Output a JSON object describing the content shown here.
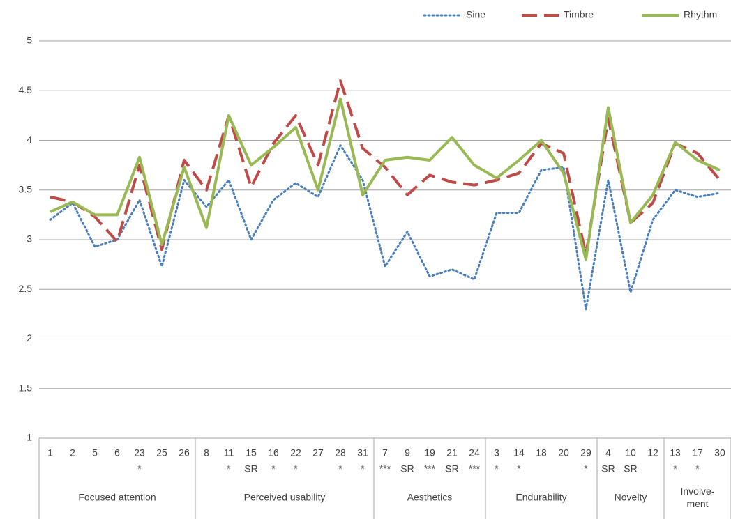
{
  "chart_data": {
    "type": "line",
    "groups": [
      {
        "label": "Focused attention",
        "categories": [
          {
            "label": "1",
            "note": null
          },
          {
            "label": "2",
            "note": null
          },
          {
            "label": "5",
            "note": null
          },
          {
            "label": "6",
            "note": null
          },
          {
            "label": "23",
            "note": "*"
          },
          {
            "label": "25",
            "note": null
          },
          {
            "label": "26",
            "note": null
          }
        ]
      },
      {
        "label": "Perceived usability",
        "categories": [
          {
            "label": "8",
            "note": null
          },
          {
            "label": "11",
            "note": "*"
          },
          {
            "label": "15",
            "note": "SR"
          },
          {
            "label": "16",
            "note": "*"
          },
          {
            "label": "22",
            "note": "*"
          },
          {
            "label": "27",
            "note": null
          },
          {
            "label": "28",
            "note": "*"
          },
          {
            "label": "31",
            "note": "*"
          }
        ]
      },
      {
        "label": "Aesthetics",
        "categories": [
          {
            "label": "7",
            "note": "***"
          },
          {
            "label": "9",
            "note": "SR"
          },
          {
            "label": "19",
            "note": "***"
          },
          {
            "label": "21",
            "note": "SR"
          },
          {
            "label": "24",
            "note": "***"
          }
        ]
      },
      {
        "label": "Endurability",
        "categories": [
          {
            "label": "3",
            "note": "*"
          },
          {
            "label": "14",
            "note": "*"
          },
          {
            "label": "18",
            "note": null
          },
          {
            "label": "20",
            "note": null
          },
          {
            "label": "29",
            "note": "*"
          }
        ]
      },
      {
        "label": "Novelty",
        "categories": [
          {
            "label": "4",
            "note": "SR"
          },
          {
            "label": "10",
            "note": "SR"
          },
          {
            "label": "12",
            "note": null
          }
        ]
      },
      {
        "label": "Involve-\nment",
        "categories": [
          {
            "label": "13",
            "note": "*"
          },
          {
            "label": "17",
            "note": "*"
          },
          {
            "label": "30",
            "note": null
          }
        ]
      }
    ],
    "series": [
      {
        "name": "Sine",
        "color": "#4a7ebb",
        "style": "dotted",
        "values": [
          3.2,
          3.37,
          2.93,
          3.0,
          3.4,
          2.73,
          3.6,
          3.33,
          3.6,
          3.0,
          3.4,
          3.57,
          3.43,
          3.95,
          3.6,
          2.73,
          3.08,
          2.63,
          2.7,
          2.6,
          3.27,
          3.27,
          3.7,
          3.73,
          2.3,
          3.6,
          2.47,
          3.2,
          3.5,
          3.43,
          3.47
        ]
      },
      {
        "name": "Timbre",
        "color": "#be4b48",
        "style": "dashed",
        "values": [
          3.43,
          3.38,
          3.23,
          2.98,
          3.75,
          2.9,
          3.8,
          3.5,
          4.25,
          3.53,
          3.97,
          4.25,
          3.75,
          4.6,
          3.92,
          3.73,
          3.45,
          3.65,
          3.58,
          3.55,
          3.6,
          3.67,
          3.97,
          3.87,
          2.85,
          4.22,
          3.17,
          3.37,
          3.97,
          3.87,
          3.6
        ]
      },
      {
        "name": "Rhythm",
        "color": "#98b954",
        "style": "solid",
        "values": [
          3.28,
          3.38,
          3.25,
          3.25,
          3.83,
          2.95,
          3.73,
          3.12,
          4.25,
          3.75,
          3.93,
          4.13,
          3.5,
          4.42,
          3.45,
          3.8,
          3.83,
          3.8,
          4.03,
          3.75,
          3.62,
          3.8,
          4.0,
          3.67,
          2.8,
          4.33,
          3.17,
          3.45,
          3.98,
          3.8,
          3.7
        ]
      }
    ],
    "ylim": [
      1,
      5
    ],
    "yticks": [
      1,
      1.5,
      2,
      2.5,
      3,
      3.5,
      4,
      4.5,
      5
    ],
    "grid": true,
    "legend": "top-right"
  }
}
